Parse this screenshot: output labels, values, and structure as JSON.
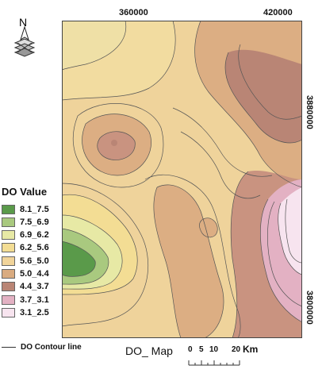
{
  "map": {
    "title": "DO_ Map",
    "north_label": "N",
    "coords": {
      "top": [
        "360000",
        "420000"
      ],
      "right": [
        "3880000",
        "3800000"
      ]
    },
    "scale": {
      "labels": [
        "0",
        "5",
        "10",
        "20"
      ],
      "unit": "Km"
    }
  },
  "legend": {
    "title": "DO Value",
    "items": [
      {
        "label": "8.1_7.5",
        "color": "#5a9a4a"
      },
      {
        "label": "7.5_6.9",
        "color": "#a9c97f"
      },
      {
        "label": "6.9_6.2",
        "color": "#e7e9a5"
      },
      {
        "label": "6.2_5.6",
        "color": "#f3dd94"
      },
      {
        "label": "5.6_5.0",
        "color": "#f1d49a"
      },
      {
        "label": "5.0_4.4",
        "color": "#d9ab80"
      },
      {
        "label": "4.4_3.7",
        "color": "#b98575"
      },
      {
        "label": "3.7_3.1",
        "color": "#e3b1c3"
      },
      {
        "label": "3.1_2.5",
        "color": "#f7e4ef"
      }
    ],
    "contour_label": "DO Contour line"
  }
}
